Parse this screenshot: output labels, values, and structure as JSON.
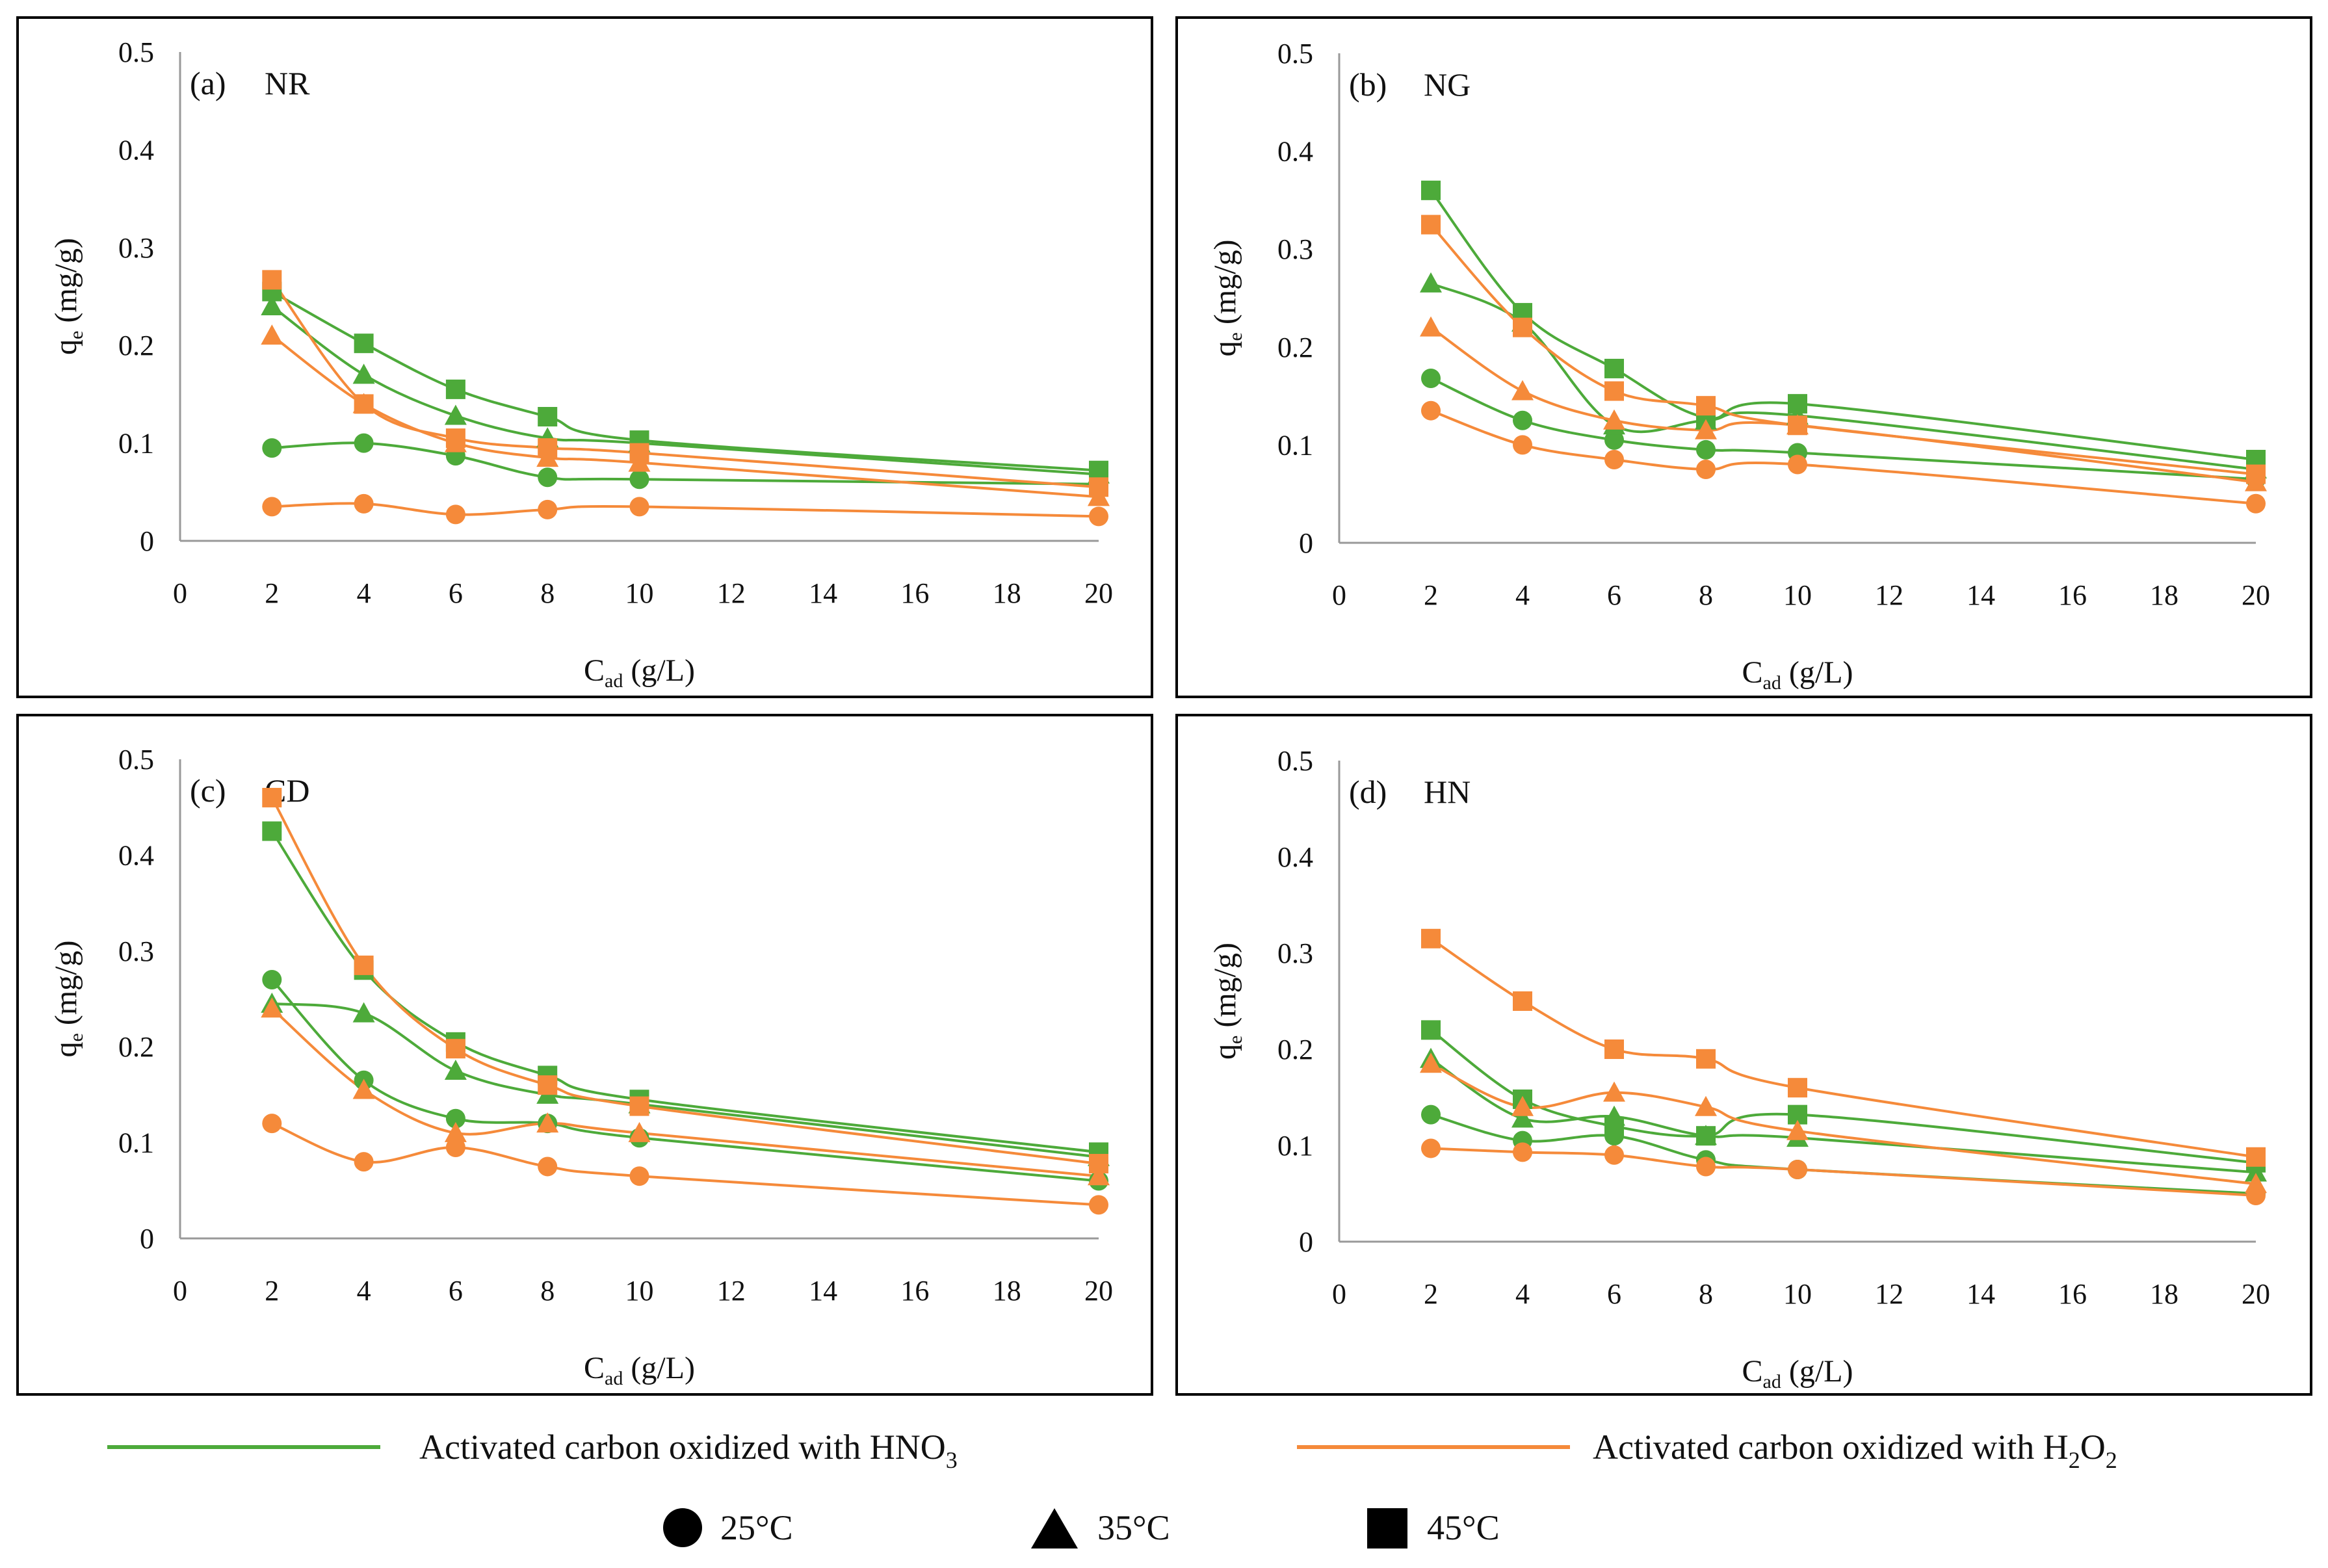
{
  "colors": {
    "hno3": "#4DAA3A",
    "h2o2": "#F58A3A",
    "frame": "#000000",
    "axis": "#999999"
  },
  "legend": {
    "hno3_label": "Activated carbon oxidized with HNO",
    "hno3_sub": "3",
    "h2o2_label_a": "Activated carbon oxidized with H",
    "h2o2_sub_a": "2",
    "h2o2_label_b": "O",
    "h2o2_sub_b": "2",
    "temps": [
      "25°C",
      "35°C",
      "45°C"
    ]
  },
  "chart_data": [
    {
      "type": "line",
      "panel_label": "(a)",
      "title": "NR",
      "xlabel": "C",
      "xlabel_sub": "ad",
      "xlabel_unit": "(g/L)",
      "ylabel": "q",
      "ylabel_sub": "e",
      "ylabel_unit": "(mg/g)",
      "xlim": [
        0,
        20
      ],
      "ylim": [
        0,
        0.5
      ],
      "xticks": [
        0,
        2,
        4,
        6,
        8,
        10,
        12,
        14,
        16,
        18,
        20
      ],
      "yticks": [
        0,
        0.1,
        0.2,
        0.3,
        0.4,
        0.5
      ],
      "ytick_labels": [
        "0",
        "0.1",
        "0.2",
        "0.3",
        "0.4",
        "0.5"
      ],
      "x": [
        2,
        4,
        6,
        8,
        10,
        20
      ],
      "series": [
        {
          "name": "HNO3 25°C",
          "agent": "HNO3",
          "temp": "25°C",
          "marker": "circle",
          "values": [
            0.095,
            0.1,
            0.087,
            0.065,
            0.063,
            0.058
          ]
        },
        {
          "name": "HNO3 35°C",
          "agent": "HNO3",
          "temp": "35°C",
          "marker": "triangle",
          "values": [
            0.24,
            0.17,
            0.128,
            0.105,
            0.1,
            0.068
          ]
        },
        {
          "name": "HNO3 45°C",
          "agent": "HNO3",
          "temp": "45°C",
          "marker": "square",
          "values": [
            0.255,
            0.202,
            0.155,
            0.127,
            0.103,
            0.072
          ]
        },
        {
          "name": "H2O2 25°C",
          "agent": "H2O2",
          "temp": "25°C",
          "marker": "circle",
          "values": [
            0.035,
            0.038,
            0.027,
            0.032,
            0.035,
            0.025
          ]
        },
        {
          "name": "H2O2 35°C",
          "agent": "H2O2",
          "temp": "35°C",
          "marker": "triangle",
          "values": [
            0.21,
            0.14,
            0.1,
            0.085,
            0.08,
            0.045
          ]
        },
        {
          "name": "H2O2 45°C",
          "agent": "H2O2",
          "temp": "45°C",
          "marker": "square",
          "values": [
            0.267,
            0.14,
            0.105,
            0.095,
            0.09,
            0.055
          ]
        }
      ]
    },
    {
      "type": "line",
      "panel_label": "(b)",
      "title": "NG",
      "xlabel": "C",
      "xlabel_sub": "ad",
      "xlabel_unit": "(g/L)",
      "ylabel": "q",
      "ylabel_sub": "e",
      "ylabel_unit": "(mg/g)",
      "xlim": [
        0,
        20
      ],
      "ylim": [
        0,
        0.5
      ],
      "xticks": [
        0,
        2,
        4,
        6,
        8,
        10,
        12,
        14,
        16,
        18,
        20
      ],
      "yticks": [
        0,
        0.1,
        0.2,
        0.3,
        0.4,
        0.5
      ],
      "ytick_labels": [
        "0",
        "0.1",
        "0.2",
        "0.3",
        "0.4",
        "0.5"
      ],
      "x": [
        2,
        4,
        6,
        8,
        10,
        20
      ],
      "series": [
        {
          "name": "HNO3 25°C",
          "agent": "HNO3",
          "temp": "25°C",
          "marker": "circle",
          "values": [
            0.168,
            0.125,
            0.105,
            0.095,
            0.092,
            0.065
          ]
        },
        {
          "name": "HNO3 35°C",
          "agent": "HNO3",
          "temp": "35°C",
          "marker": "triangle",
          "values": [
            0.265,
            0.225,
            0.12,
            0.125,
            0.13,
            0.075
          ]
        },
        {
          "name": "HNO3 45°C",
          "agent": "HNO3",
          "temp": "45°C",
          "marker": "square",
          "values": [
            0.36,
            0.235,
            0.178,
            0.128,
            0.142,
            0.085
          ]
        },
        {
          "name": "H2O2 25°C",
          "agent": "H2O2",
          "temp": "25°C",
          "marker": "circle",
          "values": [
            0.135,
            0.1,
            0.085,
            0.075,
            0.08,
            0.04
          ]
        },
        {
          "name": "H2O2 35°C",
          "agent": "H2O2",
          "temp": "35°C",
          "marker": "triangle",
          "values": [
            0.22,
            0.155,
            0.125,
            0.115,
            0.12,
            0.062
          ]
        },
        {
          "name": "H2O2 45°C",
          "agent": "H2O2",
          "temp": "45°C",
          "marker": "square",
          "values": [
            0.325,
            0.22,
            0.155,
            0.14,
            0.12,
            0.07
          ]
        }
      ]
    },
    {
      "type": "line",
      "panel_label": "(c)",
      "title": "CD",
      "xlabel": "C",
      "xlabel_sub": "ad",
      "xlabel_unit": "(g/L)",
      "ylabel": "q",
      "ylabel_sub": "e",
      "ylabel_unit": "(mg/g)",
      "xlim": [
        0,
        20
      ],
      "ylim": [
        0,
        0.5
      ],
      "xticks": [
        0,
        2,
        4,
        6,
        8,
        10,
        12,
        14,
        16,
        18,
        20
      ],
      "yticks": [
        0,
        0.1,
        0.2,
        0.3,
        0.4,
        0.5
      ],
      "ytick_labels": [
        "0",
        "0.1",
        "0.2",
        "0.3",
        "0.4",
        "0.5"
      ],
      "x": [
        2,
        4,
        6,
        8,
        10,
        20
      ],
      "series": [
        {
          "name": "HNO3 25°C",
          "agent": "HNO3",
          "temp": "25°C",
          "marker": "circle",
          "values": [
            0.27,
            0.165,
            0.125,
            0.12,
            0.105,
            0.06
          ]
        },
        {
          "name": "HNO3 35°C",
          "agent": "HNO3",
          "temp": "35°C",
          "marker": "triangle",
          "values": [
            0.245,
            0.235,
            0.175,
            0.15,
            0.14,
            0.085
          ]
        },
        {
          "name": "HNO3 45°C",
          "agent": "HNO3",
          "temp": "45°C",
          "marker": "square",
          "values": [
            0.425,
            0.28,
            0.205,
            0.17,
            0.145,
            0.09
          ]
        },
        {
          "name": "H2O2 25°C",
          "agent": "H2O2",
          "temp": "25°C",
          "marker": "circle",
          "values": [
            0.12,
            0.08,
            0.095,
            0.075,
            0.065,
            0.035
          ]
        },
        {
          "name": "H2O2 35°C",
          "agent": "H2O2",
          "temp": "35°C",
          "marker": "triangle",
          "values": [
            0.24,
            0.155,
            0.11,
            0.12,
            0.11,
            0.065
          ]
        },
        {
          "name": "H2O2 45°C",
          "agent": "H2O2",
          "temp": "45°C",
          "marker": "square",
          "values": [
            0.46,
            0.285,
            0.198,
            0.16,
            0.138,
            0.078
          ]
        }
      ]
    },
    {
      "type": "line",
      "panel_label": "(d)",
      "title": "HN",
      "xlabel": "C",
      "xlabel_sub": "ad",
      "xlabel_unit": "(g/L)",
      "ylabel": "q",
      "ylabel_sub": "e",
      "ylabel_unit": "(mg/g)",
      "xlim": [
        0,
        20
      ],
      "ylim": [
        0,
        0.5
      ],
      "xticks": [
        0,
        2,
        4,
        6,
        8,
        10,
        12,
        14,
        16,
        18,
        20
      ],
      "yticks": [
        0,
        0.1,
        0.2,
        0.3,
        0.4,
        0.5
      ],
      "ytick_labels": [
        "0",
        "0.1",
        "0.2",
        "0.3",
        "0.4",
        "0.5"
      ],
      "x": [
        2,
        4,
        6,
        8,
        10,
        20
      ],
      "series": [
        {
          "name": "HNO3 25°C",
          "agent": "HNO3",
          "temp": "25°C",
          "marker": "circle",
          "values": [
            0.132,
            0.105,
            0.11,
            0.085,
            0.075,
            0.05
          ]
        },
        {
          "name": "HNO3 35°C",
          "agent": "HNO3",
          "temp": "35°C",
          "marker": "triangle",
          "values": [
            0.19,
            0.128,
            0.13,
            0.11,
            0.108,
            0.072
          ]
        },
        {
          "name": "HNO3 45°C",
          "agent": "HNO3",
          "temp": "45°C",
          "marker": "square",
          "values": [
            0.22,
            0.148,
            0.12,
            0.11,
            0.132,
            0.082
          ]
        },
        {
          "name": "H2O2 25°C",
          "agent": "H2O2",
          "temp": "25°C",
          "marker": "circle",
          "values": [
            0.097,
            0.093,
            0.09,
            0.078,
            0.075,
            0.048
          ]
        },
        {
          "name": "H2O2 35°C",
          "agent": "H2O2",
          "temp": "35°C",
          "marker": "triangle",
          "values": [
            0.185,
            0.14,
            0.155,
            0.14,
            0.115,
            0.06
          ]
        },
        {
          "name": "H2O2 45°C",
          "agent": "H2O2",
          "temp": "45°C",
          "marker": "square",
          "values": [
            0.315,
            0.25,
            0.2,
            0.19,
            0.16,
            0.088
          ]
        }
      ]
    }
  ]
}
